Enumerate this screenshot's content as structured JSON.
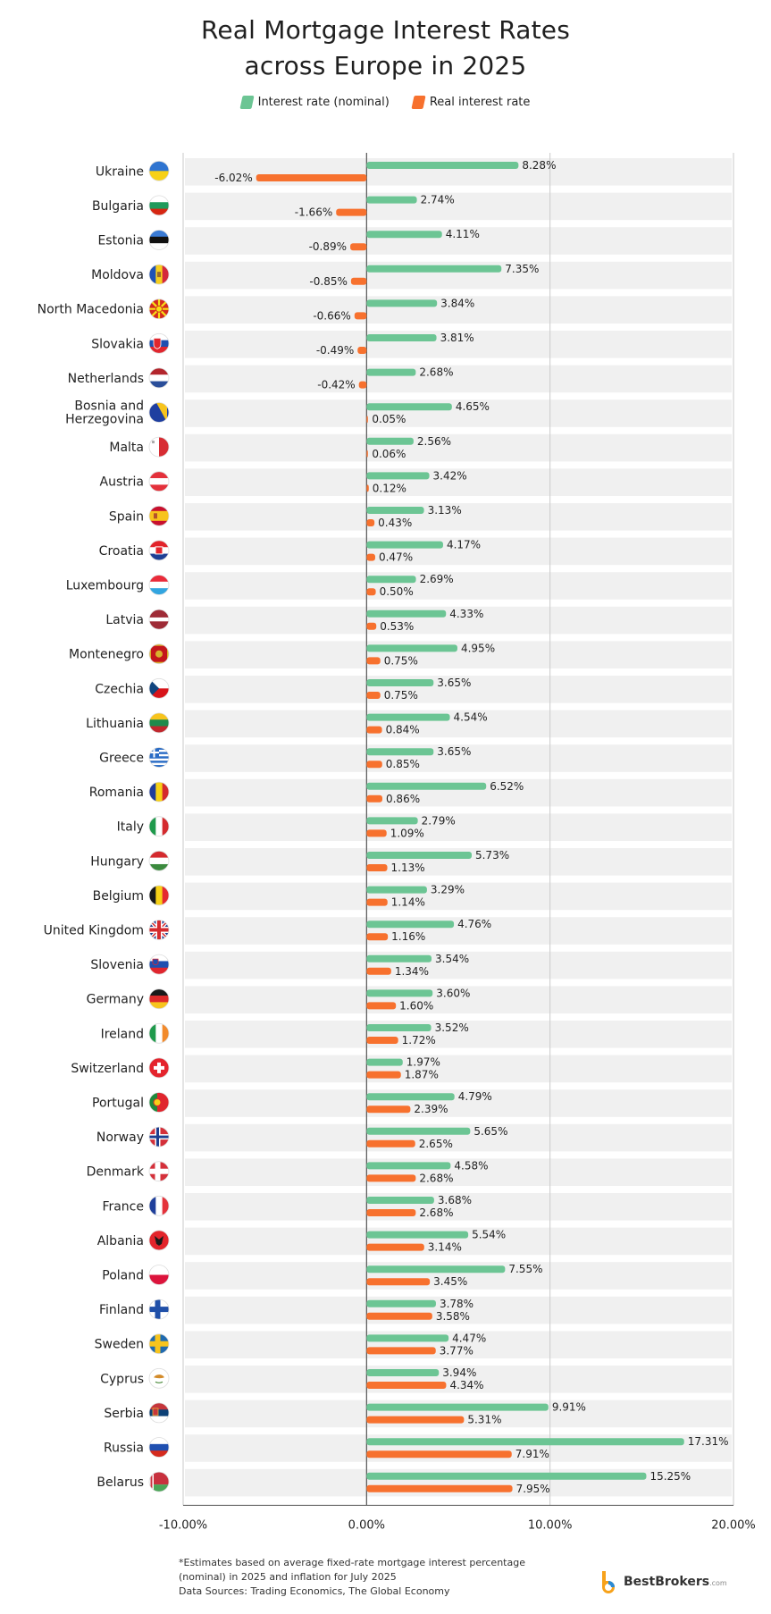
{
  "title": {
    "line1": "Real Mortgage Interest Rates",
    "line2": "across Europe in 2025"
  },
  "legend": {
    "nominal": "Interest rate (nominal)",
    "real": "Real interest rate"
  },
  "colors": {
    "nominal": "#6cc594",
    "real": "#f7712e",
    "row_band": "#f0f0f0",
    "grid": "#c9c9c9",
    "axis": "#555555"
  },
  "chart_data": {
    "type": "bar",
    "orientation": "horizontal",
    "title": "Real Mortgage Interest Rates across Europe in 2025",
    "xlabel": "",
    "ylabel": "",
    "xlim": [
      -10,
      20
    ],
    "xticks": [
      -10,
      0,
      10,
      20
    ],
    "xtick_labels": [
      "-10.00%",
      "0.00%",
      "10.00%",
      "20.00%"
    ],
    "categories": [
      "Ukraine",
      "Bulgaria",
      "Estonia",
      "Moldova",
      "North Macedonia",
      "Slovakia",
      "Netherlands",
      "Bosnia and Herzegovina",
      "Malta",
      "Austria",
      "Spain",
      "Croatia",
      "Luxembourg",
      "Latvia",
      "Montenegro",
      "Czechia",
      "Lithuania",
      "Greece",
      "Romania",
      "Italy",
      "Hungary",
      "Belgium",
      "United Kingdom",
      "Slovenia",
      "Germany",
      "Ireland",
      "Switzerland",
      "Portugal",
      "Norway",
      "Denmark",
      "France",
      "Albania",
      "Poland",
      "Finland",
      "Sweden",
      "Cyprus",
      "Serbia",
      "Russia",
      "Belarus"
    ],
    "series": [
      {
        "name": "Interest rate (nominal)",
        "values": [
          8.28,
          2.74,
          4.11,
          7.35,
          3.84,
          3.81,
          2.68,
          4.65,
          2.56,
          3.42,
          3.13,
          4.17,
          2.69,
          4.33,
          4.95,
          3.65,
          4.54,
          3.65,
          6.52,
          2.79,
          5.73,
          3.29,
          4.76,
          3.54,
          3.6,
          3.52,
          1.97,
          4.79,
          5.65,
          4.58,
          3.68,
          5.54,
          7.55,
          3.78,
          4.47,
          3.94,
          9.91,
          17.31,
          15.25
        ],
        "labels": [
          "8.28%",
          "2.74%",
          "4.11%",
          "7.35%",
          "3.84%",
          "3.81%",
          "2.68%",
          "4.65%",
          "2.56%",
          "3.42%",
          "3.13%",
          "4.17%",
          "2.69%",
          "4.33%",
          "4.95%",
          "3.65%",
          "4.54%",
          "3.65%",
          "6.52%",
          "2.79%",
          "5.73%",
          "3.29%",
          "4.76%",
          "3.54%",
          "3.60%",
          "3.52%",
          "1.97%",
          "4.79%",
          "5.65%",
          "4.58%",
          "3.68%",
          "5.54%",
          "7.55%",
          "3.78%",
          "4.47%",
          "3.94%",
          "9.91%",
          "17.31%",
          "15.25%"
        ]
      },
      {
        "name": "Real interest rate",
        "values": [
          -6.02,
          -1.66,
          -0.89,
          -0.85,
          -0.66,
          -0.49,
          -0.42,
          0.05,
          0.06,
          0.12,
          0.43,
          0.47,
          0.5,
          0.53,
          0.75,
          0.75,
          0.84,
          0.85,
          0.86,
          1.09,
          1.13,
          1.14,
          1.16,
          1.34,
          1.6,
          1.72,
          1.87,
          2.39,
          2.65,
          2.68,
          2.68,
          3.14,
          3.45,
          3.58,
          3.77,
          4.34,
          5.31,
          7.91,
          7.95
        ],
        "labels": [
          "-6.02%",
          "-1.66%",
          "-0.89%",
          "-0.85%",
          "-0.66%",
          "-0.49%",
          "-0.42%",
          "0.05%",
          "0.06%",
          "0.12%",
          "0.43%",
          "0.47%",
          "0.50%",
          "0.53%",
          "0.75%",
          "0.75%",
          "0.84%",
          "0.85%",
          "0.86%",
          "1.09%",
          "1.13%",
          "1.14%",
          "1.16%",
          "1.34%",
          "1.60%",
          "1.72%",
          "1.87%",
          "2.39%",
          "2.65%",
          "2.68%",
          "2.68%",
          "3.14%",
          "3.45%",
          "3.58%",
          "3.77%",
          "4.34%",
          "5.31%",
          "7.91%",
          "7.95%"
        ]
      }
    ],
    "flags": [
      "Ukraine",
      "Bulgaria",
      "Estonia",
      "Moldova",
      "North Macedonia",
      "Slovakia",
      "Netherlands",
      "Bosnia and Herzegovina",
      "Malta",
      "Austria",
      "Spain",
      "Croatia",
      "Luxembourg",
      "Latvia",
      "Montenegro",
      "Czechia",
      "Lithuania",
      "Greece",
      "Romania",
      "Italy",
      "Hungary",
      "Belgium",
      "United Kingdom",
      "Slovenia",
      "Germany",
      "Ireland",
      "Switzerland",
      "Portugal",
      "Norway",
      "Denmark",
      "France",
      "Albania",
      "Poland",
      "Finland",
      "Sweden",
      "Cyprus",
      "Serbia",
      "Russia",
      "Belarus"
    ]
  },
  "footnote": {
    "line1": "*Estimates based on average fixed-rate mortgage interest percentage",
    "line2": "(nominal) in 2025 and inflation for July 2025",
    "line3": "Data Sources: Trading Economics, The Global Economy"
  },
  "brand": {
    "name": "BestBrokers",
    "domain": ".com",
    "logo_icon": "bestbrokers-logo-icon"
  }
}
